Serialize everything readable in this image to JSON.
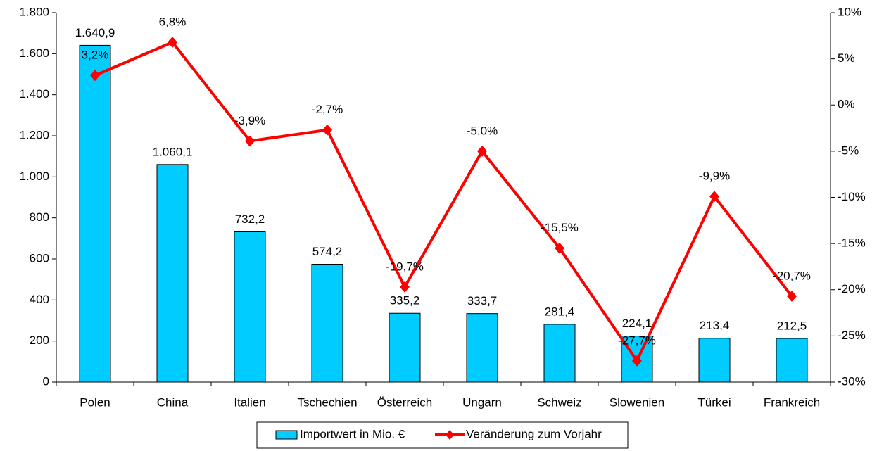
{
  "chart_data": {
    "type": "bar_line",
    "categories": [
      "Polen",
      "China",
      "Italien",
      "Tschechien",
      "Österreich",
      "Ungarn",
      "Schweiz",
      "Slowenien",
      "Türkei",
      "Frankreich"
    ],
    "series": [
      {
        "name": "Importwert in Mio. €",
        "type": "bar",
        "color": "#00ccff",
        "values": [
          1640.9,
          1060.1,
          732.2,
          574.2,
          335.2,
          333.7,
          281.4,
          224.1,
          213.4,
          212.5
        ],
        "value_labels": [
          "1.640,9",
          "1.060,1",
          "732,2",
          "574,2",
          "335,2",
          "333,7",
          "281,4",
          "224,1",
          "213,4",
          "212,5"
        ]
      },
      {
        "name": "Veränderung zum Vorjahr",
        "type": "line",
        "axis": "y2",
        "color": "#ff0000",
        "values": [
          3.2,
          6.8,
          -3.9,
          -2.7,
          -19.7,
          -5.0,
          -15.5,
          -27.7,
          -9.9,
          -20.7
        ],
        "value_labels": [
          "3,2%",
          "6,8%",
          "-3,9%",
          "-2,7%",
          "-19,7%",
          "-5,0%",
          "-15,5%",
          "-27,7%",
          "-9,9%",
          "-20,7%"
        ]
      }
    ],
    "ylim": [
      0,
      1800
    ],
    "yticks": [
      0,
      200,
      400,
      600,
      800,
      {
        "value": 1000,
        "label": "1.000"
      },
      {
        "value": 1200,
        "label": "1.200"
      },
      {
        "value": 1400,
        "label": "1.400"
      },
      {
        "value": 1600,
        "label": "1.600"
      },
      {
        "value": 1800,
        "label": "1.800"
      }
    ],
    "y2lim": [
      -30,
      10
    ],
    "y2ticks": [
      {
        "value": -30,
        "label": "-30%"
      },
      {
        "value": -25,
        "label": "-25%"
      },
      {
        "value": -20,
        "label": "-20%"
      },
      {
        "value": -15,
        "label": "-15%"
      },
      {
        "value": -10,
        "label": "-10%"
      },
      {
        "value": -5,
        "label": "-5%"
      },
      {
        "value": 0,
        "label": "0%"
      },
      {
        "value": 5,
        "label": "5%"
      },
      {
        "value": 10,
        "label": "10%"
      }
    ],
    "legend": "bottom",
    "grid": false
  }
}
